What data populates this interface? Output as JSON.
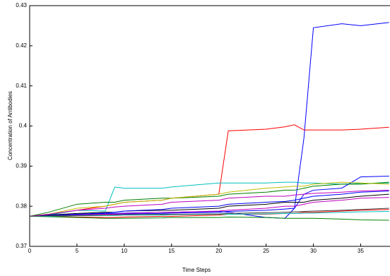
{
  "chart_data": {
    "type": "line",
    "xlabel": "Time Steps",
    "ylabel": "Concentration of Antibodies",
    "x": [
      0,
      2,
      5,
      8,
      9,
      10,
      14,
      15,
      20,
      21,
      25,
      27,
      28,
      29,
      30,
      33,
      35,
      38
    ],
    "xlim": [
      0,
      38.1
    ],
    "xticks": [
      0,
      5,
      10,
      15,
      20,
      25,
      30,
      35
    ],
    "ylim": [
      0.37,
      0.43
    ],
    "yticks": [
      0.37,
      0.38,
      0.39,
      0.4,
      0.41,
      0.42,
      0.43
    ],
    "series": [
      {
        "color": "#0000ff",
        "values": [
          0.3775,
          0.3778,
          0.378,
          0.3782,
          0.3782,
          0.3783,
          0.3785,
          0.3785,
          0.3787,
          0.3785,
          0.3772,
          0.377,
          0.3795,
          0.397,
          0.4245,
          0.4255,
          0.425,
          0.4258
        ]
      },
      {
        "color": "#ff0000",
        "values": [
          0.3775,
          0.3778,
          0.379,
          0.38,
          0.3805,
          0.381,
          0.3815,
          0.382,
          0.383,
          0.3988,
          0.3992,
          0.3998,
          0.4003,
          0.399,
          0.399,
          0.399,
          0.3992,
          0.3997
        ]
      },
      {
        "color": "#00bfbf",
        "values": [
          0.3775,
          0.3778,
          0.379,
          0.3788,
          0.3848,
          0.3845,
          0.3845,
          0.3848,
          0.3858,
          0.3858,
          0.3858,
          0.386,
          0.386,
          0.3858,
          0.3858,
          0.3855,
          0.3857,
          0.3858
        ]
      },
      {
        "color": "#0000ff",
        "values": [
          0.3775,
          0.3776,
          0.3778,
          0.378,
          0.378,
          0.3781,
          0.3782,
          0.3783,
          0.3785,
          0.3787,
          0.379,
          0.3793,
          0.3795,
          0.383,
          0.384,
          0.3845,
          0.3873,
          0.3875
        ]
      },
      {
        "color": "#008000",
        "values": [
          0.3775,
          0.3785,
          0.3805,
          0.381,
          0.381,
          0.3815,
          0.382,
          0.382,
          0.3825,
          0.383,
          0.3835,
          0.384,
          0.384,
          0.3845,
          0.385,
          0.3855,
          0.3855,
          0.386
        ]
      },
      {
        "color": "#bfbf00",
        "values": [
          0.3775,
          0.378,
          0.3795,
          0.38,
          0.3805,
          0.381,
          0.3815,
          0.382,
          0.383,
          0.3835,
          0.3845,
          0.3848,
          0.385,
          0.385,
          0.3855,
          0.386,
          0.3858,
          0.3855
        ]
      },
      {
        "color": "#bf00bf",
        "values": [
          0.3775,
          0.3775,
          0.3778,
          0.378,
          0.378,
          0.3782,
          0.3785,
          0.3785,
          0.3788,
          0.379,
          0.3795,
          0.38,
          0.38,
          0.3805,
          0.381,
          0.3815,
          0.382,
          0.3822
        ]
      },
      {
        "color": "#000000",
        "values": [
          0.3775,
          0.3778,
          0.3782,
          0.3785,
          0.3785,
          0.3788,
          0.379,
          0.379,
          0.3795,
          0.38,
          0.3805,
          0.381,
          0.381,
          0.381,
          0.3815,
          0.382,
          0.3825,
          0.383
        ]
      },
      {
        "color": "#ff0000",
        "values": [
          0.3775,
          0.3775,
          0.3773,
          0.3772,
          0.3772,
          0.3773,
          0.3775,
          0.3775,
          0.3778,
          0.378,
          0.378,
          0.3782,
          0.3782,
          0.3785,
          0.3785,
          0.3788,
          0.379,
          0.3792
        ]
      },
      {
        "color": "#008000",
        "values": [
          0.3775,
          0.3774,
          0.3772,
          0.377,
          0.377,
          0.377,
          0.3771,
          0.3772,
          0.3772,
          0.3773,
          0.3772,
          0.377,
          0.377,
          0.377,
          0.377,
          0.3768,
          0.3766,
          0.3765
        ]
      },
      {
        "color": "#0000ff",
        "values": [
          0.3775,
          0.3777,
          0.378,
          0.3783,
          0.3785,
          0.3788,
          0.3792,
          0.3795,
          0.38,
          0.3805,
          0.381,
          0.3812,
          0.3815,
          0.382,
          0.3825,
          0.383,
          0.3835,
          0.3838
        ]
      },
      {
        "color": "#00bfbf",
        "values": [
          0.3775,
          0.3775,
          0.3776,
          0.3777,
          0.3777,
          0.3778,
          0.3778,
          0.3779,
          0.378,
          0.378,
          0.3781,
          0.3782,
          0.3782,
          0.3783,
          0.3783,
          0.3785,
          0.3786,
          0.3787
        ]
      },
      {
        "color": "#bf00bf",
        "values": [
          0.3775,
          0.378,
          0.379,
          0.3795,
          0.3798,
          0.38,
          0.3805,
          0.381,
          0.3815,
          0.382,
          0.3825,
          0.3825,
          0.3828,
          0.383,
          0.3832,
          0.3835,
          0.3838,
          0.384
        ]
      },
      {
        "color": "#404040",
        "values": [
          0.3775,
          0.3776,
          0.3777,
          0.3778,
          0.3778,
          0.3779,
          0.378,
          0.378,
          0.3781,
          0.3782,
          0.3784,
          0.3785,
          0.3786,
          0.3787,
          0.3788,
          0.379,
          0.3792,
          0.3795
        ]
      }
    ]
  }
}
